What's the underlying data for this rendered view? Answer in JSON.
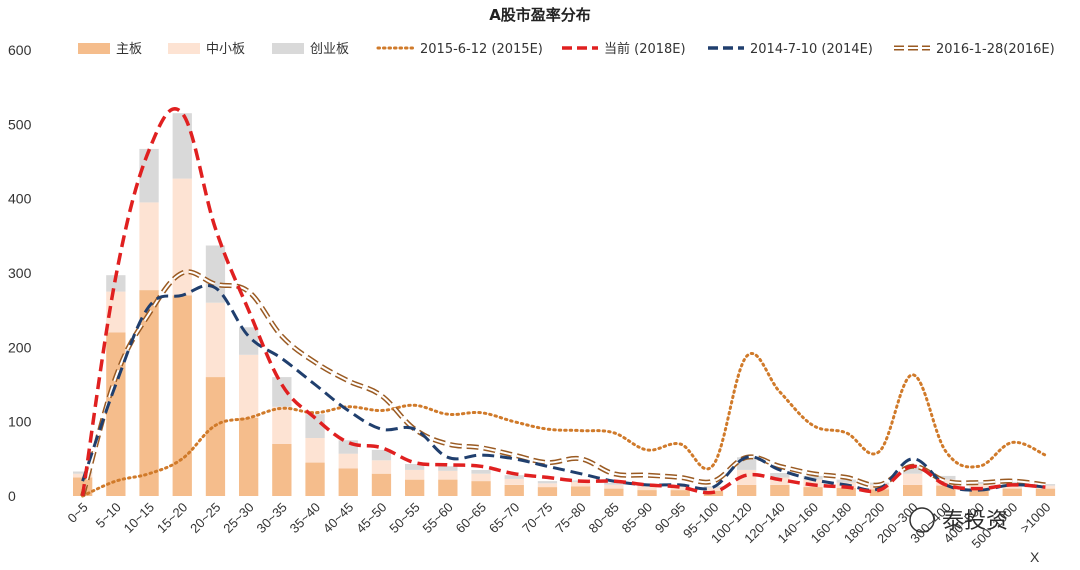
{
  "colors": {
    "main_board": "#f5bd8c",
    "sme_board": "#fde3d3",
    "chinext": "#d9d9d9",
    "s2015": "#d07a2a",
    "s2018": "#e02020",
    "s2014": "#203f6e",
    "s2016": "#9a5a22"
  },
  "chart_data": {
    "type": "bar",
    "stacked": true,
    "title": "A股市盈率分布",
    "ylim": [
      0,
      600
    ],
    "yticks": [
      0,
      100,
      200,
      300,
      400,
      500,
      600
    ],
    "categories": [
      "0~5",
      "5~10",
      "10~15",
      "15~20",
      "20~25",
      "25~30",
      "30~35",
      "35~40",
      "40~45",
      "45~50",
      "50~55",
      "55~60",
      "60~65",
      "65~70",
      "70~75",
      "75~80",
      "80~85",
      "85~90",
      "90~95",
      "95~100",
      "100~120",
      "120~140",
      "140~160",
      "160~180",
      "180~200",
      "200~300",
      "300~400",
      "400~500",
      "500~1000",
      ">1000"
    ],
    "series": [
      {
        "name": "主板",
        "kind": "bar",
        "color_key": "main_board",
        "values": [
          25,
          220,
          277,
          270,
          160,
          105,
          70,
          45,
          37,
          30,
          22,
          22,
          20,
          15,
          12,
          13,
          10,
          8,
          8,
          7,
          15,
          15,
          12,
          11,
          9,
          15,
          14,
          10,
          10,
          10
        ]
      },
      {
        "name": "中小板",
        "kind": "bar",
        "color_key": "sme_board",
        "values": [
          5,
          55,
          118,
          157,
          100,
          85,
          50,
          33,
          20,
          18,
          13,
          12,
          10,
          8,
          5,
          6,
          5,
          5,
          4,
          4,
          20,
          10,
          10,
          7,
          6,
          15,
          8,
          6,
          6,
          4
        ]
      },
      {
        "name": "创业板",
        "kind": "bar",
        "color_key": "chinext",
        "values": [
          3,
          22,
          72,
          88,
          77,
          37,
          40,
          32,
          18,
          14,
          8,
          6,
          5,
          5,
          3,
          2,
          3,
          3,
          2,
          2,
          17,
          6,
          5,
          4,
          3,
          10,
          5,
          3,
          3,
          2
        ]
      },
      {
        "name": "2015-6-12 (2015E)",
        "kind": "line",
        "style": "dotted",
        "color_key": "s2015",
        "values": [
          0,
          20,
          30,
          50,
          95,
          105,
          118,
          112,
          120,
          115,
          122,
          110,
          112,
          100,
          90,
          88,
          85,
          62,
          70,
          42,
          188,
          140,
          95,
          85,
          60,
          163,
          60,
          40,
          72,
          55
        ]
      },
      {
        "name": "当前 (2018E)",
        "kind": "line",
        "style": "dashed",
        "color_key": "s2018",
        "values": [
          0,
          295,
          465,
          515,
          360,
          250,
          150,
          105,
          72,
          65,
          45,
          42,
          40,
          30,
          25,
          20,
          20,
          15,
          12,
          5,
          28,
          22,
          15,
          12,
          8,
          40,
          15,
          10,
          15,
          12
        ]
      },
      {
        "name": "2014-7-10 (2014E)",
        "kind": "line",
        "style": "dashed",
        "color_key": "s2014",
        "values": [
          20,
          150,
          255,
          270,
          280,
          215,
          185,
          150,
          115,
          90,
          90,
          52,
          55,
          50,
          40,
          30,
          20,
          15,
          15,
          12,
          52,
          35,
          22,
          15,
          10,
          50,
          15,
          8,
          15,
          12
        ]
      },
      {
        "name": "2016-1-28(2016E)",
        "kind": "line",
        "style": "double-dashed",
        "color_key": "s2016",
        "values": [
          0,
          160,
          245,
          300,
          285,
          275,
          215,
          180,
          155,
          135,
          90,
          70,
          65,
          55,
          45,
          50,
          30,
          28,
          25,
          20,
          52,
          40,
          30,
          25,
          15,
          40,
          20,
          18,
          20,
          15
        ]
      }
    ],
    "legend_position": "top",
    "grid": false
  },
  "watermark": {
    "text": "泰投资"
  },
  "axis_marker": "X"
}
